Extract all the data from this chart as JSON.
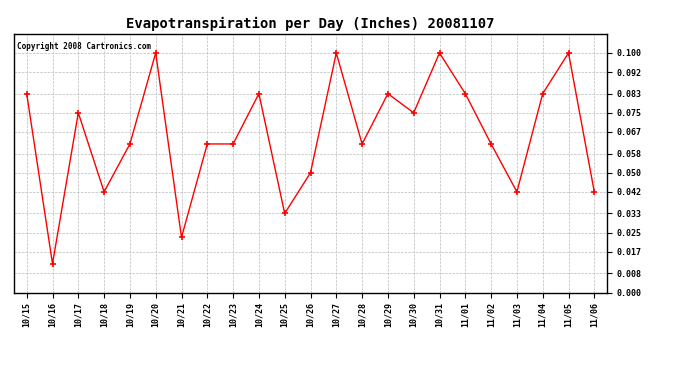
{
  "title": "Evapotranspiration per Day (Inches) 20081107",
  "copyright_text": "Copyright 2008 Cartronics.com",
  "x_labels": [
    "10/15",
    "10/16",
    "10/17",
    "10/18",
    "10/19",
    "10/20",
    "10/21",
    "10/22",
    "10/23",
    "10/24",
    "10/25",
    "10/26",
    "10/27",
    "10/28",
    "10/29",
    "10/30",
    "10/31",
    "11/01",
    "11/02",
    "11/03",
    "11/04",
    "11/05",
    "11/06"
  ],
  "y_values": [
    0.083,
    0.012,
    0.075,
    0.042,
    0.062,
    0.1,
    0.023,
    0.062,
    0.062,
    0.083,
    0.033,
    0.05,
    0.1,
    0.062,
    0.083,
    0.075,
    0.1,
    0.083,
    0.062,
    0.042,
    0.083,
    0.1,
    0.042
  ],
  "line_color": "red",
  "marker": "+",
  "marker_size": 4,
  "marker_linewidth": 1.2,
  "line_width": 1.0,
  "background_color": "#ffffff",
  "plot_bg_color": "#ffffff",
  "grid_color": "#bbbbbb",
  "ylim": [
    0.0,
    0.108
  ],
  "yticks": [
    0.0,
    0.008,
    0.017,
    0.025,
    0.033,
    0.042,
    0.05,
    0.058,
    0.067,
    0.075,
    0.083,
    0.092,
    0.1
  ],
  "title_fontsize": 10,
  "tick_fontsize": 6,
  "copyright_fontsize": 5.5
}
